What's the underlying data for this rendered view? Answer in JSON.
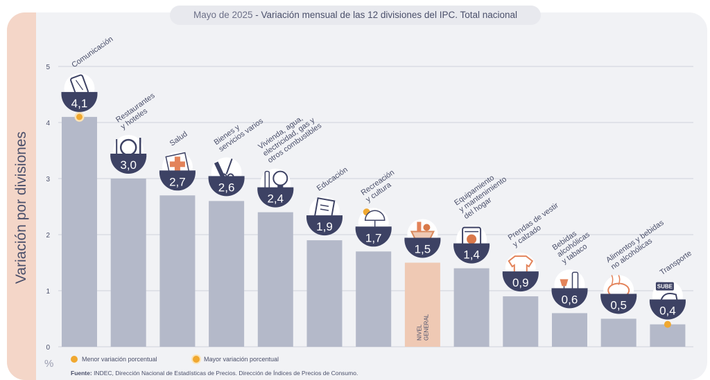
{
  "header": {
    "date": "Mayo de 2025",
    "separator": " - ",
    "title": "Variación mensual de las 12 divisiones del IPC. Total nacional"
  },
  "colors": {
    "bar": "#b4b9c9",
    "bar_highlight": "#efc9b4",
    "badge": "#3d4264",
    "badge_text": "#ffffff",
    "marker": "#f0a830",
    "marker_ring": "#fbe3b6",
    "grid": "#cfd2dc",
    "text": "#4a4f6a"
  },
  "chart_data": {
    "type": "bar",
    "ylabel": "Variación por divisiones",
    "unit": "%",
    "ylim": [
      0,
      5
    ],
    "yticks": [
      0,
      1,
      2,
      3,
      4,
      5
    ],
    "grid": true,
    "categories": [
      "Comunicación",
      "Restaurantes y hoteles",
      "Salud",
      "Bienes y servicios varios",
      "Vivienda, agua, electricidad, gas y otros combustibles",
      "Educación",
      "Recreación y cultura",
      "Nivel general",
      "Equipamiento y mantenimiento del hogar",
      "Prendas de vestir y calzado",
      "Bebidas alcohólicas y tabaco",
      "Alimentos y bebidas no alcohólicas",
      "Transporte"
    ],
    "values": [
      4.1,
      3.0,
      2.7,
      2.6,
      2.4,
      1.9,
      1.7,
      1.5,
      1.4,
      0.9,
      0.6,
      0.5,
      0.4
    ],
    "value_labels": [
      "4,1",
      "3,0",
      "2,7",
      "2,6",
      "2,4",
      "1,9",
      "1,7",
      "1,5",
      "1,4",
      "0,9",
      "0,6",
      "0,5",
      "0,4"
    ],
    "category_labels": [
      [
        "Comunicación"
      ],
      [
        "Restaurantes",
        "y hoteles"
      ],
      [
        "Salud"
      ],
      [
        "Bienes y",
        "servicios varios"
      ],
      [
        "Vivienda, agua,",
        "electricidad, gas y",
        "otros combustibles"
      ],
      [
        "Educación"
      ],
      [
        "Recreación",
        "y cultura"
      ],
      [],
      [
        "Equipamiento",
        "y mantenimiento",
        "del hogar"
      ],
      [
        "Prendas de vestir",
        "y calzado"
      ],
      [
        "Bebidas",
        "alcohólicas",
        "y tabaco"
      ],
      [
        "Alimentos y bebidas",
        "no alcohólicas"
      ],
      [
        "Transporte"
      ]
    ],
    "highlight_index": 7,
    "inside_label": [
      "NIVEL",
      "GENERAL"
    ],
    "max_marker_index": 0,
    "min_marker_index": 12,
    "icons": [
      "phone-icon",
      "cutlery-plate-icon",
      "first-aid-icon",
      "comb-scissors-icon",
      "bulb-tools-icon",
      "book-icon",
      "umbrella-sun-icon",
      "basket-icon",
      "washing-machine-icon",
      "tshirt-icon",
      "wine-bottle-icon",
      "food-icon",
      "bus-card-icon"
    ],
    "icon_text": {
      "bus-card-icon": "SUBE"
    }
  },
  "legend": {
    "min_label": "Menor variación porcentual",
    "max_label": "Mayor variación porcentual"
  },
  "source": {
    "label": "Fuente:",
    "text": " INDEC, Dirección Nacional de Estadísticas de Precios. Dirección de Índices de Precios de Consumo."
  }
}
